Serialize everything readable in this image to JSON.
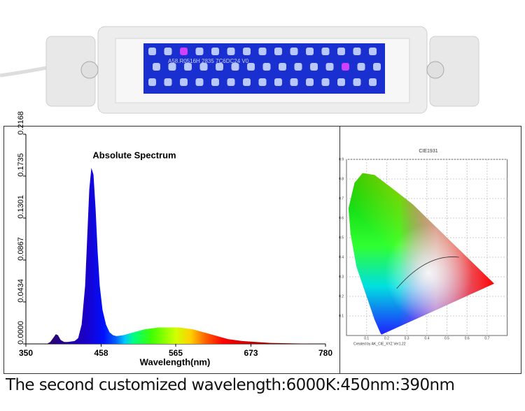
{
  "chart_data": {
    "type": "area",
    "title": "Absolute Spectrum",
    "x_label": "Wavelength(nm)",
    "xlim": [
      350,
      780
    ],
    "xticks": [
      350,
      458,
      565,
      673,
      780
    ],
    "ylim": [
      0,
      0.2168
    ],
    "yticks": [
      {
        "value": 0,
        "label": "0.0000"
      },
      0.0434,
      0.0867,
      0.1301,
      0.1735,
      0.2168
    ],
    "x": [
      380,
      385,
      390,
      393,
      396,
      400,
      405,
      410,
      420,
      425,
      430,
      435,
      438,
      441,
      444,
      447,
      450,
      453,
      456,
      460,
      465,
      470,
      475,
      480,
      490,
      500,
      510,
      520,
      530,
      540,
      550,
      560,
      570,
      580,
      590,
      600,
      610,
      620,
      630,
      640,
      650,
      660,
      680,
      700,
      730,
      780
    ],
    "values": [
      0,
      0.002,
      0.007,
      0.01,
      0.009,
      0.004,
      0.002,
      0.002,
      0.003,
      0.006,
      0.02,
      0.06,
      0.11,
      0.16,
      0.182,
      0.175,
      0.14,
      0.095,
      0.06,
      0.035,
      0.02,
      0.012,
      0.009,
      0.008,
      0.009,
      0.011,
      0.013,
      0.015,
      0.016,
      0.017,
      0.017,
      0.017,
      0.017,
      0.016,
      0.015,
      0.013,
      0.011,
      0.009,
      0.007,
      0.005,
      0.004,
      0.003,
      0.002,
      0.001,
      0.0005,
      0
    ]
  },
  "cie": {
    "title": "CIE1931",
    "xticks": [
      0.1,
      0.2,
      0.3,
      0.4,
      0.5,
      0.6,
      0.7
    ],
    "yticks": [
      0.1,
      0.2,
      0.3,
      0.4,
      0.5,
      0.6,
      0.7,
      0.8,
      0.9
    ],
    "credit": "Created by AK_CIE_XYZ Ver1.22"
  },
  "led_panel_text": "A58.R0516H 2835 7C6DC24 V0",
  "caption": "The second customized wavelength:6000K:450nm:390nm"
}
